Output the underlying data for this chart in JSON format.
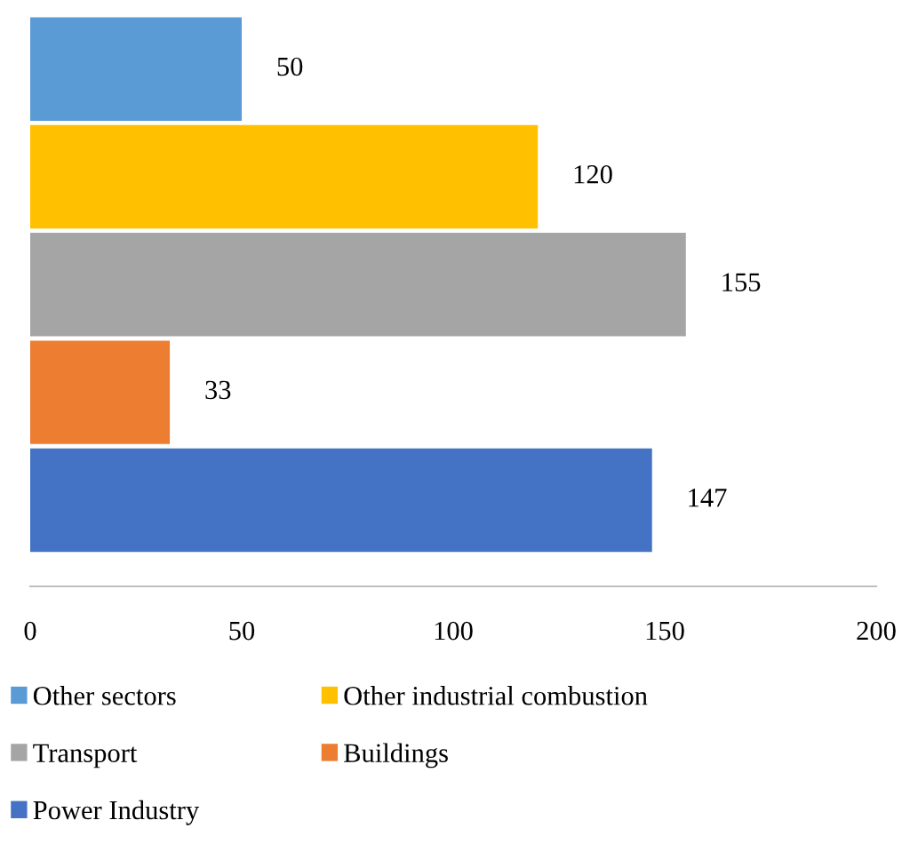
{
  "chart_data": {
    "type": "bar",
    "orientation": "horizontal",
    "categories": [
      null,
      null,
      null,
      null,
      null
    ],
    "series": [
      {
        "name": "Other sectors",
        "color": "#5b9bd5",
        "values": [
          50,
          null,
          null,
          null,
          null
        ]
      },
      {
        "name": "Other industrial combustion",
        "color": "#ffc000",
        "values": [
          null,
          120,
          null,
          null,
          null
        ]
      },
      {
        "name": "Transport",
        "color": "#a5a5a5",
        "values": [
          null,
          null,
          155,
          null,
          null
        ]
      },
      {
        "name": "Buildings",
        "color": "#ed7d31",
        "values": [
          null,
          null,
          null,
          33,
          null
        ]
      },
      {
        "name": "Power Industry",
        "color": "#4472c4",
        "values": [
          null,
          null,
          null,
          null,
          147
        ]
      }
    ],
    "xlim": [
      0,
      200
    ],
    "xticks": [
      0,
      50,
      100,
      150,
      200
    ],
    "stacked": true,
    "grid": false,
    "legend": "bottom",
    "data_labels": true
  }
}
